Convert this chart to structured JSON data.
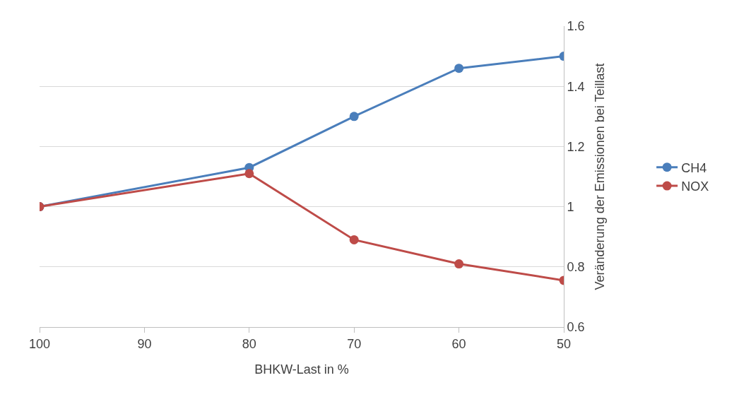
{
  "chart_data": {
    "type": "line",
    "xlabel": "BHKW-Last in %",
    "ylabel": "Veränderung der Emissionen bei Teillast",
    "x": [
      100,
      80,
      70,
      60,
      50
    ],
    "series": [
      {
        "name": "CH4",
        "color": "#4a7ebb",
        "values": [
          1,
          1.13,
          1.3,
          1.46,
          1.5
        ]
      },
      {
        "name": "NOX",
        "color": "#be4b48",
        "values": [
          1,
          1.11,
          0.89,
          0.81,
          0.755
        ]
      }
    ],
    "xlim": [
      100,
      50
    ],
    "xticks": [
      100,
      90,
      80,
      70,
      60,
      50
    ],
    "ylim": [
      0.6,
      1.6
    ],
    "yticks": [
      0.6,
      0.8,
      1,
      1.2,
      1.4,
      1.6
    ],
    "grid": "y",
    "legend": "right",
    "marker": "circle",
    "line_style": "solid"
  }
}
